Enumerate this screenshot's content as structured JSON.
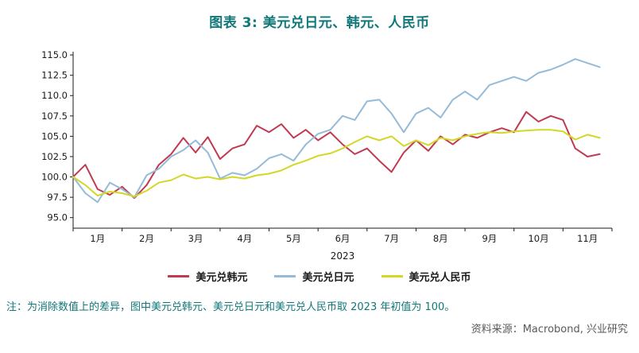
{
  "chart_data": {
    "type": "line",
    "title": "图表 3: 美元兑日元、韩元、人民币",
    "x_axis_label": "2023",
    "x_tick_labels": [
      "1月",
      "2月",
      "3月",
      "4月",
      "5月",
      "6月",
      "7月",
      "8月",
      "9月",
      "10月",
      "11月"
    ],
    "y_ticks": [
      95.0,
      97.5,
      100.0,
      102.5,
      105.0,
      107.5,
      110.0,
      112.5,
      115.0
    ],
    "ylim": [
      95.0,
      115.0
    ],
    "xlim_months": [
      0,
      11
    ],
    "x_step_months": 0.25,
    "legend_position": "bottom",
    "grid": false,
    "series": [
      {
        "key": "usd_krw",
        "name": "美元兑韩元",
        "color": "#C13A52",
        "values": [
          100,
          101.5,
          98.5,
          97.8,
          98.8,
          97.4,
          99,
          101.5,
          102.8,
          104.8,
          103,
          104.9,
          102.2,
          103.5,
          104,
          106.3,
          105.5,
          106.5,
          104.8,
          105.8,
          104.5,
          105.5,
          104,
          102.8,
          103.5,
          102,
          100.6,
          103,
          104.5,
          103.2,
          105,
          104,
          105.2,
          104.8,
          105.5,
          106,
          105.5,
          108,
          106.8,
          107.5,
          107,
          103.5,
          102.5,
          102.8
        ]
      },
      {
        "key": "usd_jpy",
        "name": "美元兑日元",
        "color": "#95BBD8",
        "values": [
          100,
          98,
          96.9,
          99.3,
          98.5,
          97.5,
          100.2,
          101,
          102.5,
          103.3,
          104.5,
          103,
          99.8,
          100.5,
          100.2,
          101,
          102.3,
          102.8,
          102,
          104,
          105.3,
          105.8,
          107.5,
          107,
          109.3,
          109.5,
          107.8,
          105.5,
          107.8,
          108.5,
          107.3,
          109.5,
          110.5,
          109.5,
          111.3,
          111.8,
          112.3,
          111.8,
          112.8,
          113.2,
          113.8,
          114.5,
          114,
          113.5
        ]
      },
      {
        "key": "usd_cny",
        "name": "美元兑人民币",
        "color": "#D2D824",
        "values": [
          100,
          99,
          97.7,
          98.2,
          98,
          97.6,
          98.3,
          99.3,
          99.6,
          100.3,
          99.8,
          100,
          99.7,
          100,
          99.8,
          100.2,
          100.4,
          100.8,
          101.5,
          102,
          102.6,
          102.9,
          103.5,
          104.3,
          105,
          104.5,
          105,
          103.8,
          104.5,
          103.9,
          104.8,
          104.5,
          105,
          105.3,
          105.5,
          105.4,
          105.6,
          105.7,
          105.8,
          105.8,
          105.6,
          104.6,
          105.2,
          104.8
        ]
      }
    ]
  },
  "note": "注：为消除数值上的差异，图中美元兑韩元、美元兑日元和美元兑人民币取 2023 年初值为 100。",
  "source": "资料来源：Macrobond, 兴业研究"
}
